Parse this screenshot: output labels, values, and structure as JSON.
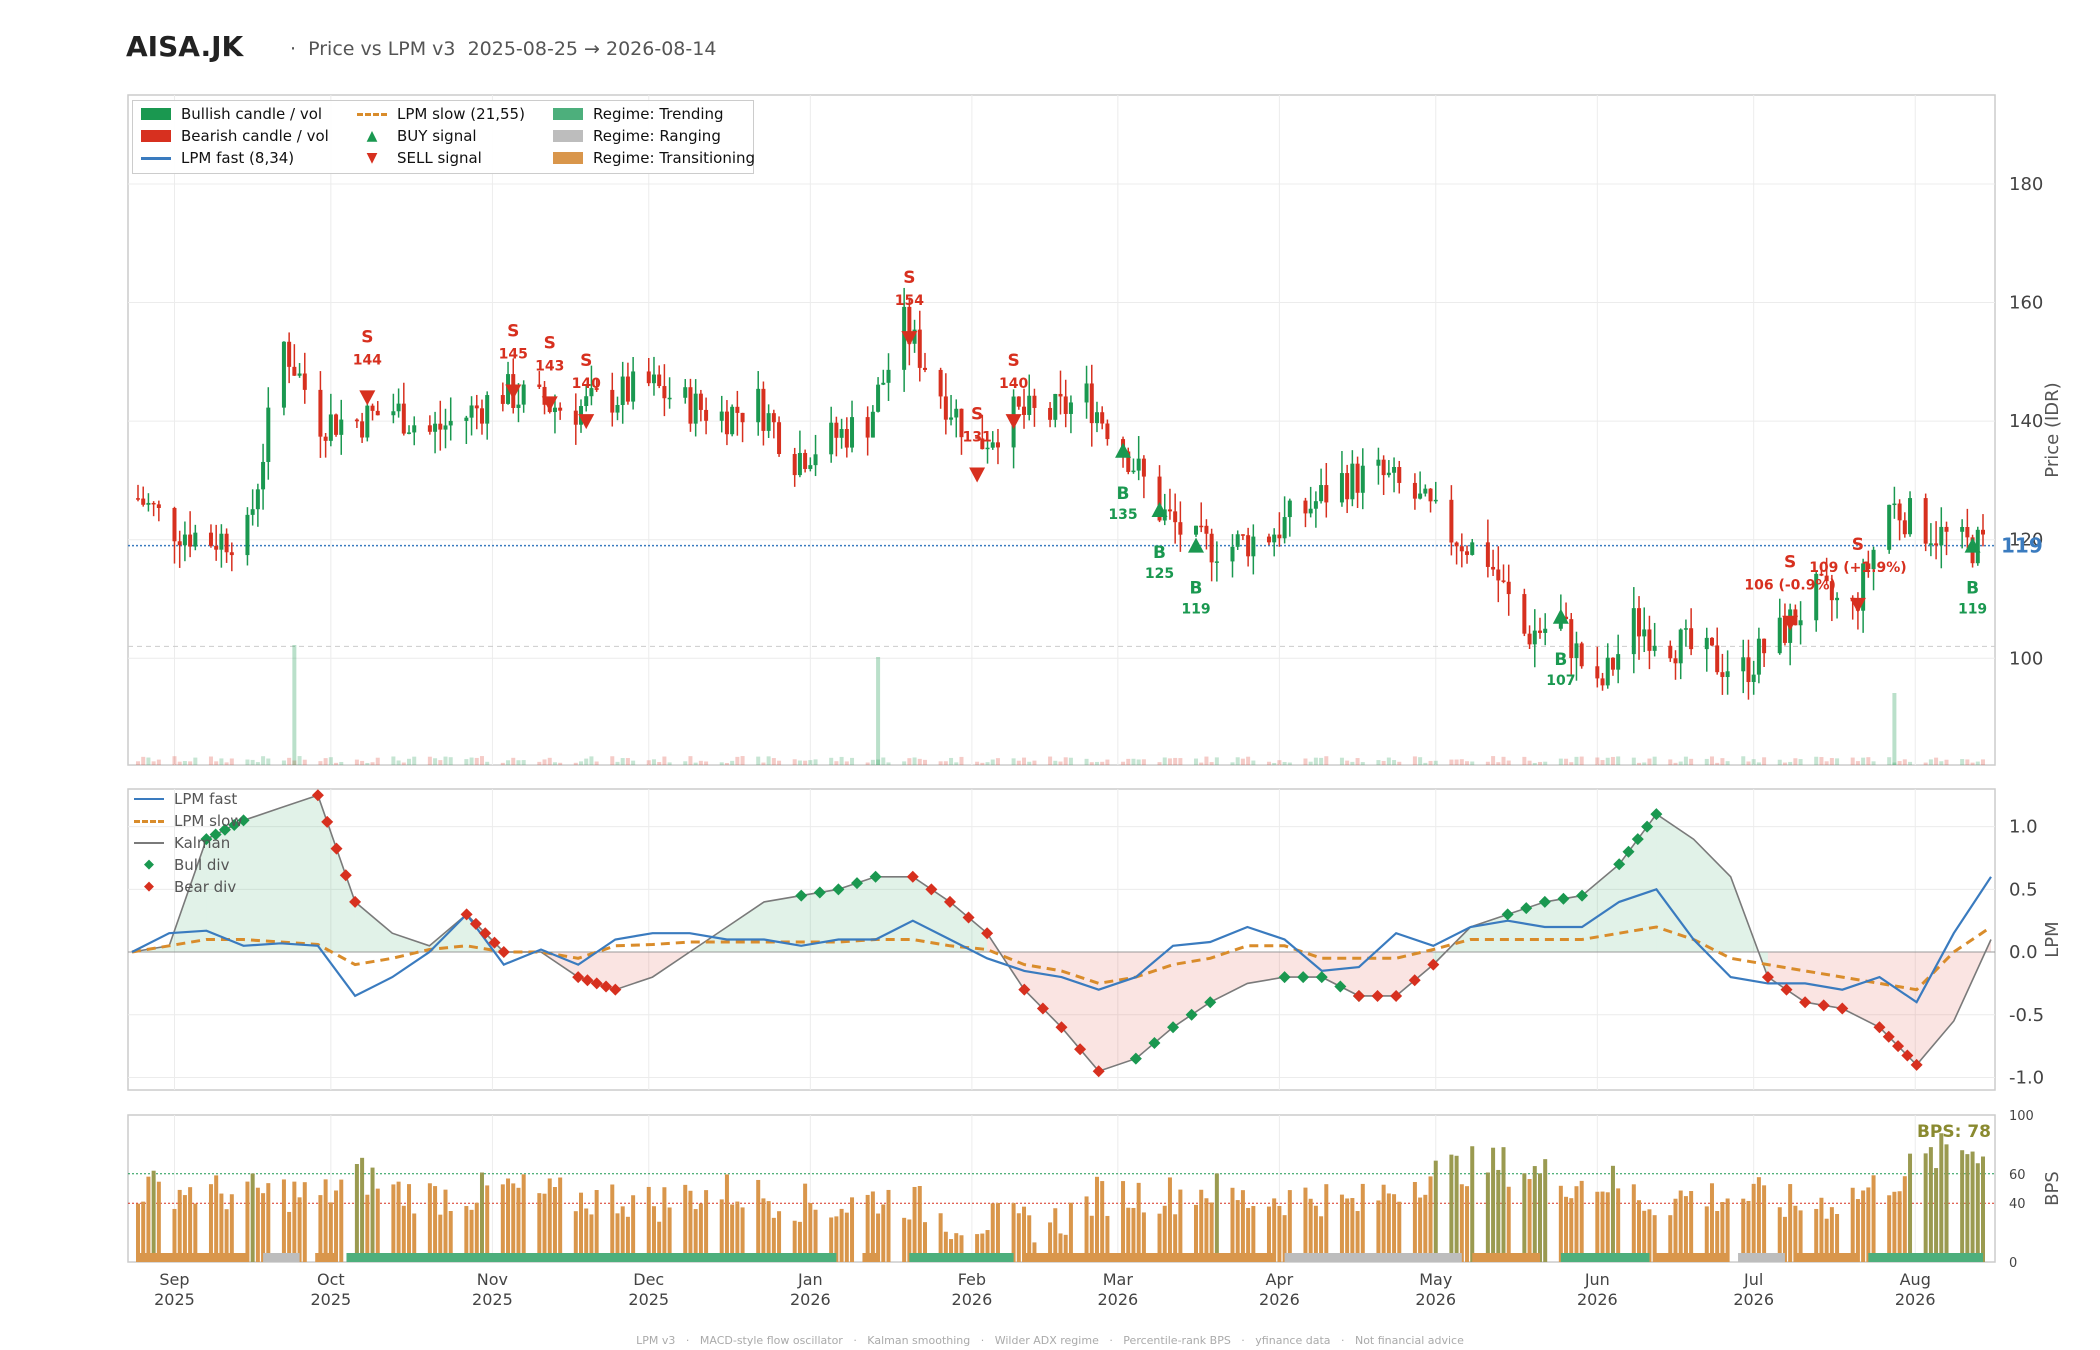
{
  "header": {
    "ticker": "AISA.JK",
    "subtitle": "·  Price vs LPM v3  2025-08-25 → 2026-08-14"
  },
  "footer": "LPM v3   ·   MACD-style flow oscillator   ·   Kalman smoothing   ·   Wilder ADX regime   ·   Percentile-rank BPS   ·   yfinance data   ·   Not financial advice",
  "colors": {
    "bull": "#1a9850",
    "bear": "#d7301f",
    "fast": "#3a7bbf",
    "slow": "#d98c2b",
    "kalman": "#7a7a7a",
    "trending": "#4daf7c",
    "ranging": "#bdbdbd",
    "transitioning": "#d9964b",
    "bps_bar": "#d9964b",
    "bps_hi": "#9a9a50"
  },
  "legend_top": [
    {
      "icon": "bull-swatch",
      "label": "Bullish candle / vol"
    },
    {
      "icon": "bear-swatch",
      "label": "Bearish candle / vol"
    },
    {
      "icon": "fast-line",
      "label": "LPM fast (8,34)"
    },
    {
      "icon": "slow-dash",
      "label": "LPM slow (21,55)"
    },
    {
      "icon": "buy-triangle",
      "label": "BUY signal"
    },
    {
      "icon": "sell-triangle",
      "label": "SELL signal"
    },
    {
      "icon": "trending-swatch",
      "label": "Regime: Trending"
    },
    {
      "icon": "ranging-swatch",
      "label": "Regime: Ranging"
    },
    {
      "icon": "transitioning-swatch",
      "label": "Regime: Transitioning"
    }
  ],
  "legend_mid": [
    {
      "icon": "fast-line",
      "label": "LPM fast"
    },
    {
      "icon": "slow-dash",
      "label": "LPM slow"
    },
    {
      "icon": "kalman-line",
      "label": "Kalman"
    },
    {
      "icon": "bull-div",
      "label": "Bull div"
    },
    {
      "icon": "bear-div",
      "label": "Bear div"
    }
  ],
  "chart_data": [
    {
      "type": "candlestick",
      "panel": "price",
      "ylabel": "Price (IDR)",
      "ylim": [
        82,
        195
      ],
      "yticks": [
        100,
        120,
        140,
        160,
        180
      ],
      "last_price": 119,
      "last_price_label": "119",
      "close_series": [
        [
          "2025-08-25",
          127
        ],
        [
          "2025-09-01",
          122
        ],
        [
          "2025-09-08",
          120
        ],
        [
          "2025-09-15",
          121
        ],
        [
          "2025-09-22",
          153
        ],
        [
          "2025-09-29",
          140
        ],
        [
          "2025-10-06",
          140
        ],
        [
          "2025-10-13",
          142
        ],
        [
          "2025-10-20",
          138
        ],
        [
          "2025-10-27",
          141
        ],
        [
          "2025-11-03",
          145
        ],
        [
          "2025-11-10",
          143
        ],
        [
          "2025-11-17",
          142
        ],
        [
          "2025-11-24",
          144
        ],
        [
          "2025-12-01",
          146
        ],
        [
          "2025-12-08",
          143
        ],
        [
          "2025-12-15",
          141
        ],
        [
          "2025-12-22",
          143
        ],
        [
          "2025-12-29",
          134
        ],
        [
          "2026-01-05",
          137
        ],
        [
          "2026-01-12",
          140
        ],
        [
          "2026-01-19",
          156
        ],
        [
          "2026-01-26",
          145
        ],
        [
          "2026-02-02",
          136
        ],
        [
          "2026-02-09",
          141
        ],
        [
          "2026-02-16",
          141
        ],
        [
          "2026-02-23",
          144
        ],
        [
          "2026-03-02",
          136
        ],
        [
          "2026-03-09",
          125
        ],
        [
          "2026-03-16",
          119
        ],
        [
          "2026-03-23",
          119
        ],
        [
          "2026-03-30",
          121
        ],
        [
          "2026-04-06",
          125
        ],
        [
          "2026-04-13",
          130
        ],
        [
          "2026-04-20",
          131
        ],
        [
          "2026-04-27",
          127
        ],
        [
          "2026-05-04",
          121
        ],
        [
          "2026-05-11",
          117
        ],
        [
          "2026-05-18",
          104
        ],
        [
          "2026-05-25",
          106
        ],
        [
          "2026-06-01",
          94
        ],
        [
          "2026-06-08",
          106
        ],
        [
          "2026-06-15",
          103
        ],
        [
          "2026-06-22",
          100
        ],
        [
          "2026-06-29",
          98
        ],
        [
          "2026-07-06",
          104
        ],
        [
          "2026-07-13",
          111
        ],
        [
          "2026-07-20",
          108
        ],
        [
          "2026-07-27",
          126
        ],
        [
          "2026-08-03",
          122
        ],
        [
          "2026-08-10",
          119
        ]
      ],
      "signals": [
        {
          "side": "SELL",
          "date": "2025-10-08",
          "price": 144,
          "label": "S",
          "sub": "144"
        },
        {
          "side": "SELL",
          "date": "2025-11-05",
          "price": 145,
          "label": "S",
          "sub": "145"
        },
        {
          "side": "SELL",
          "date": "2025-11-12",
          "price": 143,
          "label": "S",
          "sub": "143"
        },
        {
          "side": "SELL",
          "date": "2025-11-19",
          "price": 140,
          "label": "S",
          "sub": "140"
        },
        {
          "side": "SELL",
          "date": "2026-01-20",
          "price": 154,
          "label": "S",
          "sub": "154"
        },
        {
          "side": "SELL",
          "date": "2026-02-02",
          "price": 131,
          "label": "S",
          "sub": "131"
        },
        {
          "side": "SELL",
          "date": "2026-02-09",
          "price": 140,
          "label": "S",
          "sub": "140"
        },
        {
          "side": "BUY",
          "date": "2026-03-02",
          "price": 135,
          "label": "B",
          "sub": "135"
        },
        {
          "side": "BUY",
          "date": "2026-03-09",
          "price": 125,
          "label": "B",
          "sub": "125"
        },
        {
          "side": "BUY",
          "date": "2026-03-16",
          "price": 119,
          "label": "B",
          "sub": "119"
        },
        {
          "side": "BUY",
          "date": "2026-05-25",
          "price": 107,
          "label": "B",
          "sub": "107"
        },
        {
          "side": "SELL",
          "date": "2026-07-08",
          "price": 106,
          "label": "S",
          "sub": "106 (-0.9%)"
        },
        {
          "side": "SELL",
          "date": "2026-07-21",
          "price": 109,
          "label": "S",
          "sub": "109 (+1.9%)"
        },
        {
          "side": "BUY",
          "date": "2026-08-12",
          "price": 119,
          "label": "B",
          "sub": "119"
        }
      ],
      "volume_spikes": [
        [
          "2025-09-24",
          1.0
        ],
        [
          "2026-01-14",
          0.9
        ],
        [
          "2026-07-28",
          0.6
        ]
      ]
    },
    {
      "type": "line",
      "panel": "oscillator",
      "ylabel": "LPM",
      "ylim": [
        -1.1,
        1.3
      ],
      "yticks": [
        "1.0",
        "0.5",
        "0.0",
        "-0.5",
        "-1.0"
      ],
      "series": [
        {
          "name": "LPM fast",
          "values": [
            0.0,
            0.15,
            0.17,
            0.05,
            0.07,
            0.05,
            -0.35,
            -0.2,
            0.0,
            0.3,
            -0.1,
            0.02,
            -0.1,
            0.1,
            0.15,
            0.15,
            0.1,
            0.1,
            0.05,
            0.1,
            0.1,
            0.25,
            0.1,
            -0.05,
            -0.15,
            -0.2,
            -0.3,
            -0.2,
            0.05,
            0.08,
            0.2,
            0.1,
            -0.15,
            -0.12,
            0.15,
            0.05,
            0.2,
            0.25,
            0.2,
            0.2,
            0.4,
            0.5,
            0.1,
            -0.2,
            -0.25,
            -0.25,
            -0.3,
            -0.2,
            -0.4,
            0.15,
            0.6
          ]
        },
        {
          "name": "LPM slow",
          "values": [
            0.0,
            0.05,
            0.1,
            0.1,
            0.08,
            0.06,
            -0.1,
            -0.05,
            0.02,
            0.05,
            0.0,
            0.0,
            -0.05,
            0.05,
            0.06,
            0.08,
            0.08,
            0.08,
            0.08,
            0.08,
            0.1,
            0.1,
            0.05,
            0.02,
            -0.1,
            -0.15,
            -0.25,
            -0.2,
            -0.1,
            -0.05,
            0.05,
            0.05,
            -0.05,
            -0.05,
            -0.05,
            0.02,
            0.1,
            0.1,
            0.1,
            0.1,
            0.15,
            0.2,
            0.1,
            -0.05,
            -0.1,
            -0.15,
            -0.2,
            -0.25,
            -0.3,
            0.0,
            0.2
          ]
        },
        {
          "name": "Kalman",
          "values": [
            0.0,
            0.05,
            0.9,
            1.05,
            1.15,
            1.25,
            0.4,
            0.15,
            0.05,
            0.3,
            0.0,
            0.0,
            -0.2,
            -0.3,
            -0.2,
            0.0,
            0.2,
            0.4,
            0.45,
            0.5,
            0.6,
            0.6,
            0.4,
            0.15,
            -0.3,
            -0.6,
            -0.95,
            -0.85,
            -0.6,
            -0.4,
            -0.25,
            -0.2,
            -0.2,
            -0.35,
            -0.35,
            -0.1,
            0.2,
            0.3,
            0.4,
            0.45,
            0.7,
            1.1,
            0.9,
            0.6,
            -0.2,
            -0.4,
            -0.45,
            -0.6,
            -0.9,
            -0.55,
            0.1
          ]
        }
      ]
    },
    {
      "type": "bar",
      "panel": "bps",
      "ylabel": "BPS",
      "ylim": [
        0,
        100
      ],
      "yticks": [
        "100",
        "60",
        "40",
        "0"
      ],
      "thresholds": [
        60,
        40
      ],
      "last_label": "BPS: 78",
      "values": [
        50,
        50,
        47,
        47,
        48,
        44,
        60,
        48,
        45,
        46,
        50,
        45,
        43,
        44,
        40,
        46,
        48,
        45,
        40,
        38,
        44,
        41,
        28,
        28,
        26,
        28,
        45,
        46,
        46,
        50,
        42,
        44,
        45,
        38,
        50,
        60,
        65,
        66,
        60,
        55,
        54,
        40,
        45,
        45,
        44,
        38,
        42,
        50,
        62,
        76,
        78
      ],
      "xticks": [
        [
          "Sep",
          "2025"
        ],
        [
          "Oct",
          "2025"
        ],
        [
          "Nov",
          "2025"
        ],
        [
          "Dec",
          "2025"
        ],
        [
          "Jan",
          "2026"
        ],
        [
          "Feb",
          "2026"
        ],
        [
          "Mar",
          "2026"
        ],
        [
          "Apr",
          "2026"
        ],
        [
          "May",
          "2026"
        ],
        [
          "Jun",
          "2026"
        ],
        [
          "Jul",
          "2026"
        ],
        [
          "Aug",
          "2026"
        ]
      ],
      "regime": [
        [
          "transitioning",
          "2025-08-25",
          "2025-09-15"
        ],
        [
          "ranging",
          "2025-09-18",
          "2025-09-25"
        ],
        [
          "transitioning",
          "2025-09-28",
          "2025-10-02"
        ],
        [
          "trending",
          "2025-10-04",
          "2026-01-06"
        ],
        [
          "transitioning",
          "2026-01-11",
          "2026-01-14"
        ],
        [
          "trending",
          "2026-01-20",
          "2026-02-09"
        ],
        [
          "transitioning",
          "2026-02-11",
          "2026-03-31"
        ],
        [
          "ranging",
          "2026-04-02",
          "2026-05-06"
        ],
        [
          "transitioning",
          "2026-05-08",
          "2026-05-21"
        ],
        [
          "trending",
          "2026-05-25",
          "2026-06-11"
        ],
        [
          "transitioning",
          "2026-06-12",
          "2026-06-26"
        ],
        [
          "ranging",
          "2026-06-28",
          "2026-07-07"
        ],
        [
          "transitioning",
          "2026-07-09",
          "2026-07-21"
        ],
        [
          "trending",
          "2026-07-23",
          "2026-08-14"
        ]
      ]
    }
  ]
}
